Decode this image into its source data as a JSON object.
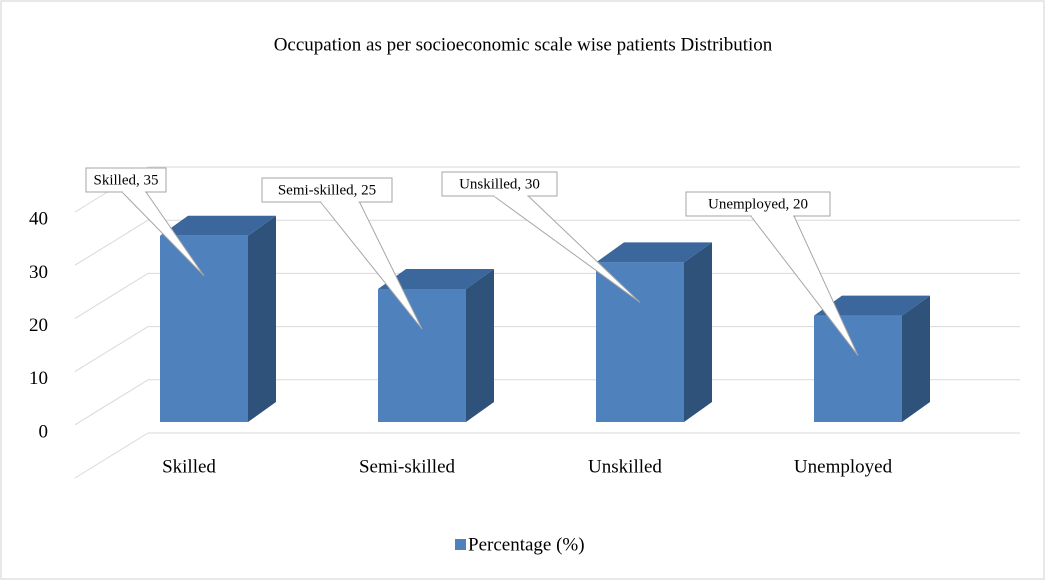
{
  "chart_data": {
    "type": "bar3d",
    "title": "Occupation as per socioeconomic scale  wise patients Distribution",
    "categories": [
      "Skilled",
      "Semi-skilled",
      "Unskilled",
      "Unemployed"
    ],
    "series": [
      {
        "name": "Percentage (%)",
        "color": "#4f81bd",
        "values": [
          35,
          25,
          30,
          20
        ],
        "value_labels": [
          "Skilled, 35",
          "Semi-skilled, 25",
          "Unskilled, 30",
          "Unemployed, 20"
        ]
      }
    ],
    "ylim": [
      0,
      50
    ],
    "yticks": [
      0,
      10,
      20,
      30,
      40
    ],
    "grid": true,
    "legend": "bottom"
  }
}
